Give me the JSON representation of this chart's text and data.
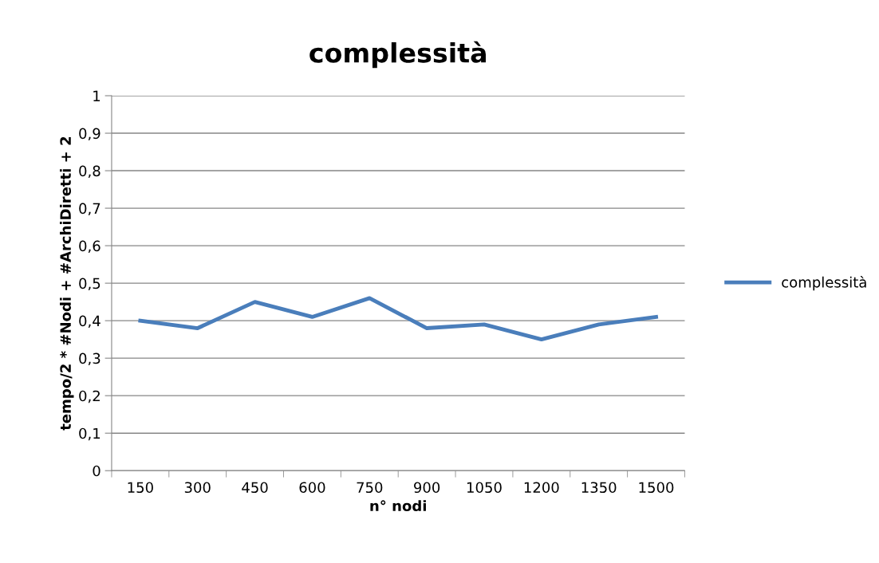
{
  "chart_data": {
    "type": "line",
    "title": "complessità",
    "xlabel": "n° nodi",
    "ylabel": "tempo/2 * #Nodi + #ArchiDiretti + 2",
    "categories": [
      "150",
      "300",
      "450",
      "600",
      "750",
      "900",
      "1050",
      "1200",
      "1350",
      "1500"
    ],
    "series": [
      {
        "name": "complessità",
        "color": "#4a7ebb",
        "values": [
          0.4,
          0.38,
          0.45,
          0.41,
          0.46,
          0.38,
          0.39,
          0.35,
          0.39,
          0.41
        ]
      }
    ],
    "ylim": [
      0,
      1
    ],
    "yticks": [
      0,
      {
        "value": 0.1,
        "label": "0,1"
      },
      {
        "value": 0.2,
        "label": "0,2"
      },
      {
        "value": 0.3,
        "label": "0,3"
      },
      {
        "value": 0.4,
        "label": "0,4"
      },
      {
        "value": 0.5,
        "label": "0,5"
      },
      {
        "value": 0.6,
        "label": "0,6"
      },
      {
        "value": 0.7,
        "label": "0,7"
      },
      {
        "value": 0.8,
        "label": "0,8"
      },
      {
        "value": 0.9,
        "label": "0,9"
      },
      1
    ],
    "grid": "y",
    "legend": "right",
    "marker": "none",
    "line_style": "solid"
  }
}
